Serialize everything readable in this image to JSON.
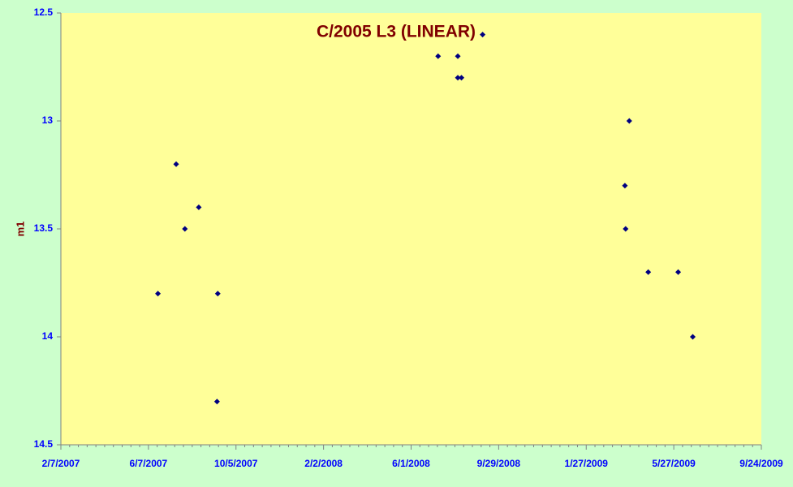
{
  "chart_data": {
    "type": "scatter",
    "title": "C/2005 L3 (LINEAR)",
    "y_label": "m1",
    "x": [
      "2007-06-20",
      "2007-07-15",
      "2007-07-27",
      "2007-08-15",
      "2007-09-10",
      "2007-09-09",
      "2008-07-08",
      "2008-08-04",
      "2008-08-04",
      "2008-08-09",
      "2008-09-07",
      "2009-03-27",
      "2009-03-21",
      "2009-03-22",
      "2009-04-22",
      "2009-06-02",
      "2009-06-22"
    ],
    "values": [
      13.8,
      13.2,
      13.5,
      13.4,
      13.8,
      14.3,
      12.7,
      12.7,
      12.8,
      12.8,
      12.6,
      13.0,
      13.3,
      13.5,
      13.7,
      13.7,
      14.0
    ],
    "color": "#000080",
    "xlim": [
      "2007-02-07",
      "2009-09-24"
    ],
    "xticks": [
      {
        "value": "2007-02-07",
        "label": "2/7/2007"
      },
      {
        "value": "2007-06-07",
        "label": "6/7/2007"
      },
      {
        "value": "2007-10-05",
        "label": "10/5/2007"
      },
      {
        "value": "2008-02-02",
        "label": "2/2/2008"
      },
      {
        "value": "2008-06-01",
        "label": "6/1/2008"
      },
      {
        "value": "2008-09-29",
        "label": "9/29/2008"
      },
      {
        "value": "2009-01-27",
        "label": "1/27/2009"
      },
      {
        "value": "2009-05-27",
        "label": "5/27/2009"
      },
      {
        "value": "2009-09-24",
        "label": "9/24/2009"
      }
    ],
    "ylim": [
      12.5,
      14.5
    ],
    "yticks": [
      12.5,
      13,
      13.5,
      14,
      14.5
    ],
    "invert_y": true
  }
}
